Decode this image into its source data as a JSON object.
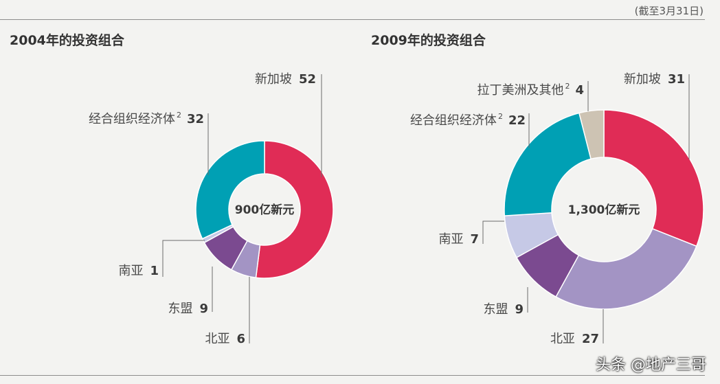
{
  "header": {
    "date_note": "(截至3月31日)"
  },
  "watermark": "头条 @地产三哥",
  "chart_data": [
    {
      "type": "pie",
      "title": "2004年的投资组合",
      "center_label": "900亿新元",
      "slices": [
        {
          "name": "新加坡",
          "value": 52,
          "color": "#e02c56"
        },
        {
          "name": "北亚",
          "value": 6,
          "color": "#a394c4"
        },
        {
          "name": "东盟",
          "value": 9,
          "color": "#7b4a90"
        },
        {
          "name": "南亚",
          "value": 1,
          "color": "#c6c9e6"
        },
        {
          "name": "经合组织经济体",
          "value": 32,
          "color": "#00a0b4",
          "sup": "2"
        }
      ]
    },
    {
      "type": "pie",
      "title": "2009年的投资组合",
      "center_label": "1,300亿新元",
      "slices": [
        {
          "name": "新加坡",
          "value": 31,
          "color": "#e02c56"
        },
        {
          "name": "北亚",
          "value": 27,
          "color": "#a394c4"
        },
        {
          "name": "东盟",
          "value": 9,
          "color": "#7b4a90"
        },
        {
          "name": "南亚",
          "value": 7,
          "color": "#c6c9e6"
        },
        {
          "name": "经合组织经济体",
          "value": 22,
          "color": "#00a0b4",
          "sup": "2"
        },
        {
          "name": "拉丁美洲及其他",
          "value": 4,
          "color": "#cdc3b3",
          "sup": "2"
        }
      ]
    }
  ]
}
